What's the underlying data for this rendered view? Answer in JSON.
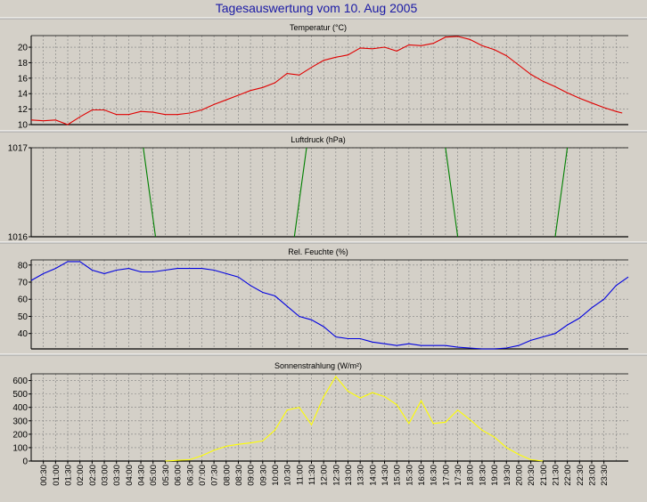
{
  "title": "Tagesauswertung vom 10. Aug 2005",
  "colors": {
    "background": "#d4d0c8",
    "title": "#1a1aa6",
    "temperature": "#e00000",
    "pressure": "#008000",
    "humidity": "#0000e0",
    "radiation": "#ffff00",
    "grid": "#808080"
  },
  "time_labels": [
    "00:30",
    "01:00",
    "01:30",
    "02:00",
    "02:30",
    "03:00",
    "03:30",
    "04:00",
    "04:30",
    "05:00",
    "05:30",
    "06:00",
    "06:30",
    "07:00",
    "07:30",
    "08:00",
    "08:30",
    "09:00",
    "09:30",
    "10:00",
    "10:30",
    "11:00",
    "11:30",
    "12:00",
    "12:30",
    "13:00",
    "13:30",
    "14:00",
    "14:30",
    "15:00",
    "15:30",
    "16:00",
    "16:30",
    "17:00",
    "17:30",
    "18:00",
    "18:30",
    "19:00",
    "19:30",
    "20:00",
    "20:30",
    "21:00",
    "21:30",
    "22:00",
    "22:30",
    "23:00",
    "23:30"
  ],
  "chart_data": [
    {
      "type": "line",
      "title": "Temperatur (°C)",
      "ylim": [
        10,
        21.5
      ],
      "yticks": [
        10,
        12,
        14,
        16,
        18,
        20
      ],
      "grid": true,
      "series": [
        {
          "color": "#e00000",
          "points": [
            [
              0,
              10.6
            ],
            [
              0.5,
              10.5
            ],
            [
              1,
              10.6
            ],
            [
              1.5,
              10
            ],
            [
              2,
              11
            ],
            [
              2.5,
              11.9
            ],
            [
              3,
              11.9
            ],
            [
              3.5,
              11.3
            ],
            [
              4,
              11.3
            ],
            [
              4.5,
              11.7
            ],
            [
              5,
              11.6
            ],
            [
              5.5,
              11.3
            ],
            [
              6,
              11.3
            ],
            [
              6.5,
              11.5
            ],
            [
              7,
              11.9
            ],
            [
              7.5,
              12.6
            ],
            [
              8,
              13.2
            ],
            [
              8.5,
              13.8
            ],
            [
              9,
              14.4
            ],
            [
              9.5,
              14.8
            ],
            [
              10,
              15.4
            ],
            [
              10.5,
              16.6
            ],
            [
              11,
              16.4
            ],
            [
              11.5,
              17.4
            ],
            [
              12,
              18.3
            ],
            [
              12.5,
              18.7
            ],
            [
              13,
              19
            ],
            [
              13.5,
              19.9
            ],
            [
              14,
              19.8
            ],
            [
              14.5,
              20
            ],
            [
              15,
              19.5
            ],
            [
              15.5,
              20.3
            ],
            [
              16,
              20.2
            ],
            [
              16.5,
              20.5
            ],
            [
              17,
              21.3
            ],
            [
              17.5,
              21.4
            ],
            [
              18,
              21
            ],
            [
              18.5,
              20.2
            ],
            [
              19,
              19.7
            ],
            [
              19.5,
              18.9
            ],
            [
              20,
              17.7
            ],
            [
              20.5,
              16.5
            ],
            [
              21,
              15.6
            ],
            [
              21.5,
              14.9
            ],
            [
              22,
              14.1
            ],
            [
              22.5,
              13.4
            ],
            [
              23,
              12.8
            ],
            [
              23.5,
              12.2
            ],
            [
              24,
              11.7
            ],
            [
              24.25,
              11.5
            ]
          ]
        }
      ]
    },
    {
      "type": "line",
      "title": "Luftdruck (hPa)",
      "ylim": [
        1016,
        1017
      ],
      "yticks": [
        1016,
        1017
      ],
      "grid": true,
      "series": [
        {
          "color": "#008000",
          "segments": [
            [
              [
                4.6,
                1017
              ],
              [
                5.1,
                1016
              ]
            ],
            [
              [
                10.8,
                1016
              ],
              [
                11.3,
                1017
              ]
            ],
            [
              [
                17.0,
                1017
              ],
              [
                17.5,
                1016
              ]
            ],
            [
              [
                21.5,
                1016
              ],
              [
                22.0,
                1017
              ]
            ]
          ]
        }
      ]
    },
    {
      "type": "line",
      "title": "Rel. Feuchte (%)",
      "ylim": [
        31,
        83
      ],
      "yticks": [
        40,
        50,
        60,
        70,
        80
      ],
      "grid": true,
      "series": [
        {
          "color": "#0000e0",
          "points": [
            [
              0,
              71
            ],
            [
              0.5,
              75
            ],
            [
              1,
              78
            ],
            [
              1.5,
              82
            ],
            [
              2,
              82
            ],
            [
              2.5,
              77
            ],
            [
              3,
              75
            ],
            [
              3.5,
              77
            ],
            [
              4,
              78
            ],
            [
              4.5,
              76
            ],
            [
              5,
              76
            ],
            [
              5.5,
              77
            ],
            [
              6,
              78
            ],
            [
              6.5,
              78
            ],
            [
              7,
              78
            ],
            [
              7.5,
              77
            ],
            [
              8,
              75
            ],
            [
              8.5,
              73
            ],
            [
              9,
              68
            ],
            [
              9.5,
              64
            ],
            [
              10,
              62
            ],
            [
              10.5,
              56
            ],
            [
              11,
              50
            ],
            [
              11.5,
              48
            ],
            [
              12,
              44
            ],
            [
              12.5,
              38
            ],
            [
              13,
              37
            ],
            [
              13.5,
              37
            ],
            [
              14,
              35
            ],
            [
              14.5,
              34
            ],
            [
              15,
              33
            ],
            [
              15.5,
              34
            ],
            [
              16,
              33
            ],
            [
              16.5,
              33
            ],
            [
              17,
              33
            ],
            [
              17.5,
              32
            ],
            [
              18,
              31.5
            ],
            [
              18.5,
              31
            ],
            [
              19,
              31
            ],
            [
              19.5,
              31.5
            ],
            [
              20,
              33
            ],
            [
              20.5,
              36
            ],
            [
              21,
              38
            ],
            [
              21.5,
              40
            ],
            [
              22,
              45
            ],
            [
              22.5,
              49
            ],
            [
              23,
              55
            ],
            [
              23.5,
              60
            ],
            [
              24,
              68
            ],
            [
              24.5,
              73
            ]
          ]
        }
      ]
    },
    {
      "type": "line",
      "title": "Sonnenstrahlung (W/m²)",
      "ylim": [
        0,
        650
      ],
      "yticks": [
        0,
        100,
        200,
        300,
        400,
        500,
        600
      ],
      "grid": true,
      "series": [
        {
          "color": "#ffff00",
          "points": [
            [
              5.5,
              0
            ],
            [
              6,
              5
            ],
            [
              6.5,
              10
            ],
            [
              7,
              40
            ],
            [
              7.5,
              80
            ],
            [
              8,
              110
            ],
            [
              8.5,
              125
            ],
            [
              9,
              135
            ],
            [
              9.5,
              150
            ],
            [
              10,
              230
            ],
            [
              10.5,
              380
            ],
            [
              11,
              400
            ],
            [
              11.5,
              270
            ],
            [
              12,
              480
            ],
            [
              12.5,
              630
            ],
            [
              13,
              520
            ],
            [
              13.5,
              470
            ],
            [
              14,
              510
            ],
            [
              14.5,
              480
            ],
            [
              15,
              420
            ],
            [
              15.5,
              280
            ],
            [
              16,
              450
            ],
            [
              16.5,
              280
            ],
            [
              17,
              290
            ],
            [
              17.5,
              380
            ],
            [
              18,
              310
            ],
            [
              18.5,
              230
            ],
            [
              19,
              180
            ],
            [
              19.5,
              100
            ],
            [
              20,
              50
            ],
            [
              20.5,
              10
            ],
            [
              21,
              0
            ]
          ]
        }
      ]
    }
  ]
}
